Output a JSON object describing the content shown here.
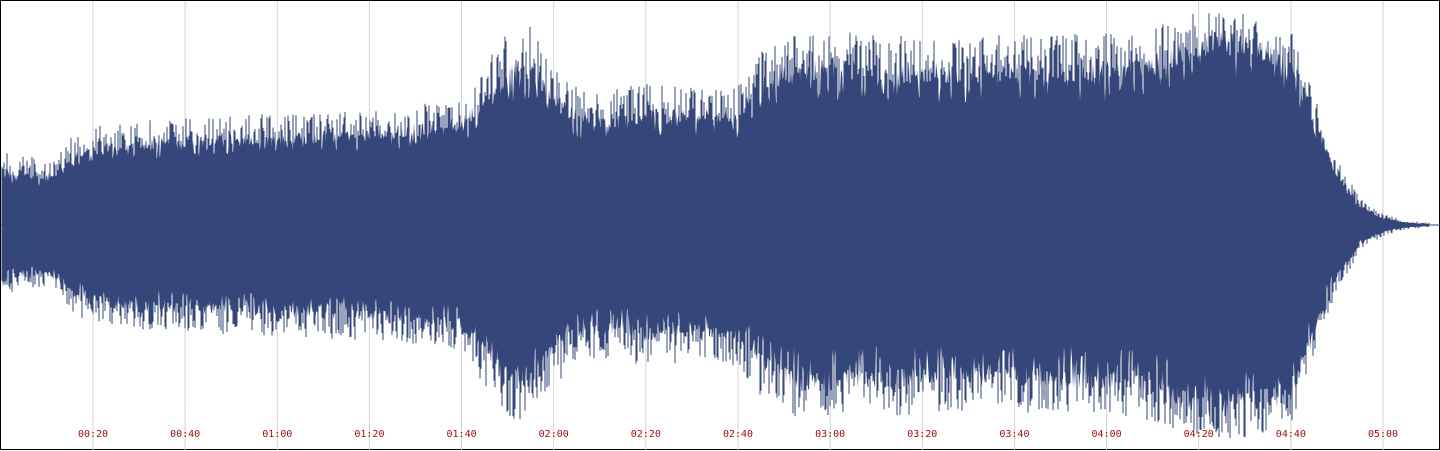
{
  "chart_data": {
    "type": "area",
    "title": "",
    "xlabel": "",
    "ylabel": "",
    "duration_seconds": 310,
    "xlim_seconds": [
      0,
      310
    ],
    "ylim": [
      -1,
      1
    ],
    "x_tick_labels": [
      "00:20",
      "00:40",
      "01:00",
      "01:20",
      "01:40",
      "02:00",
      "02:20",
      "02:40",
      "03:00",
      "03:20",
      "03:40",
      "04:00",
      "04:20",
      "04:40",
      "05:00"
    ],
    "x_tick_seconds": [
      20,
      40,
      60,
      80,
      100,
      120,
      140,
      160,
      180,
      200,
      220,
      240,
      260,
      280,
      300
    ],
    "grid": true,
    "envelope": {
      "time_seconds": [
        0,
        3,
        6,
        9,
        12,
        16,
        22,
        30,
        40,
        50,
        60,
        70,
        80,
        90,
        100,
        110,
        115,
        120,
        125,
        130,
        135,
        140,
        150,
        160,
        165,
        170,
        180,
        190,
        200,
        210,
        220,
        230,
        240,
        250,
        255,
        260,
        270,
        280,
        285,
        287,
        290,
        295,
        300,
        305,
        310
      ],
      "peak_amplitude": [
        0.35,
        0.3,
        0.32,
        0.28,
        0.3,
        0.42,
        0.45,
        0.47,
        0.48,
        0.5,
        0.5,
        0.51,
        0.52,
        0.54,
        0.57,
        0.88,
        0.9,
        0.72,
        0.64,
        0.6,
        0.62,
        0.64,
        0.62,
        0.64,
        0.78,
        0.86,
        0.88,
        0.86,
        0.86,
        0.85,
        0.86,
        0.86,
        0.87,
        0.88,
        0.94,
        0.96,
        0.96,
        0.9,
        0.6,
        0.45,
        0.3,
        0.12,
        0.05,
        0.02,
        0.01
      ],
      "body_amplitude": [
        0.25,
        0.2,
        0.22,
        0.2,
        0.22,
        0.3,
        0.32,
        0.34,
        0.35,
        0.36,
        0.36,
        0.37,
        0.38,
        0.4,
        0.42,
        0.64,
        0.66,
        0.52,
        0.46,
        0.44,
        0.44,
        0.46,
        0.45,
        0.46,
        0.58,
        0.64,
        0.66,
        0.64,
        0.64,
        0.64,
        0.64,
        0.64,
        0.65,
        0.66,
        0.72,
        0.76,
        0.76,
        0.7,
        0.46,
        0.34,
        0.22,
        0.08,
        0.03,
        0.01,
        0.005
      ]
    }
  },
  "colors": {
    "waveform": "#35477a",
    "grid": "#d3d3d3",
    "tick_label": "#a01010",
    "background": "#ffffff",
    "center_line": "#35477a"
  }
}
